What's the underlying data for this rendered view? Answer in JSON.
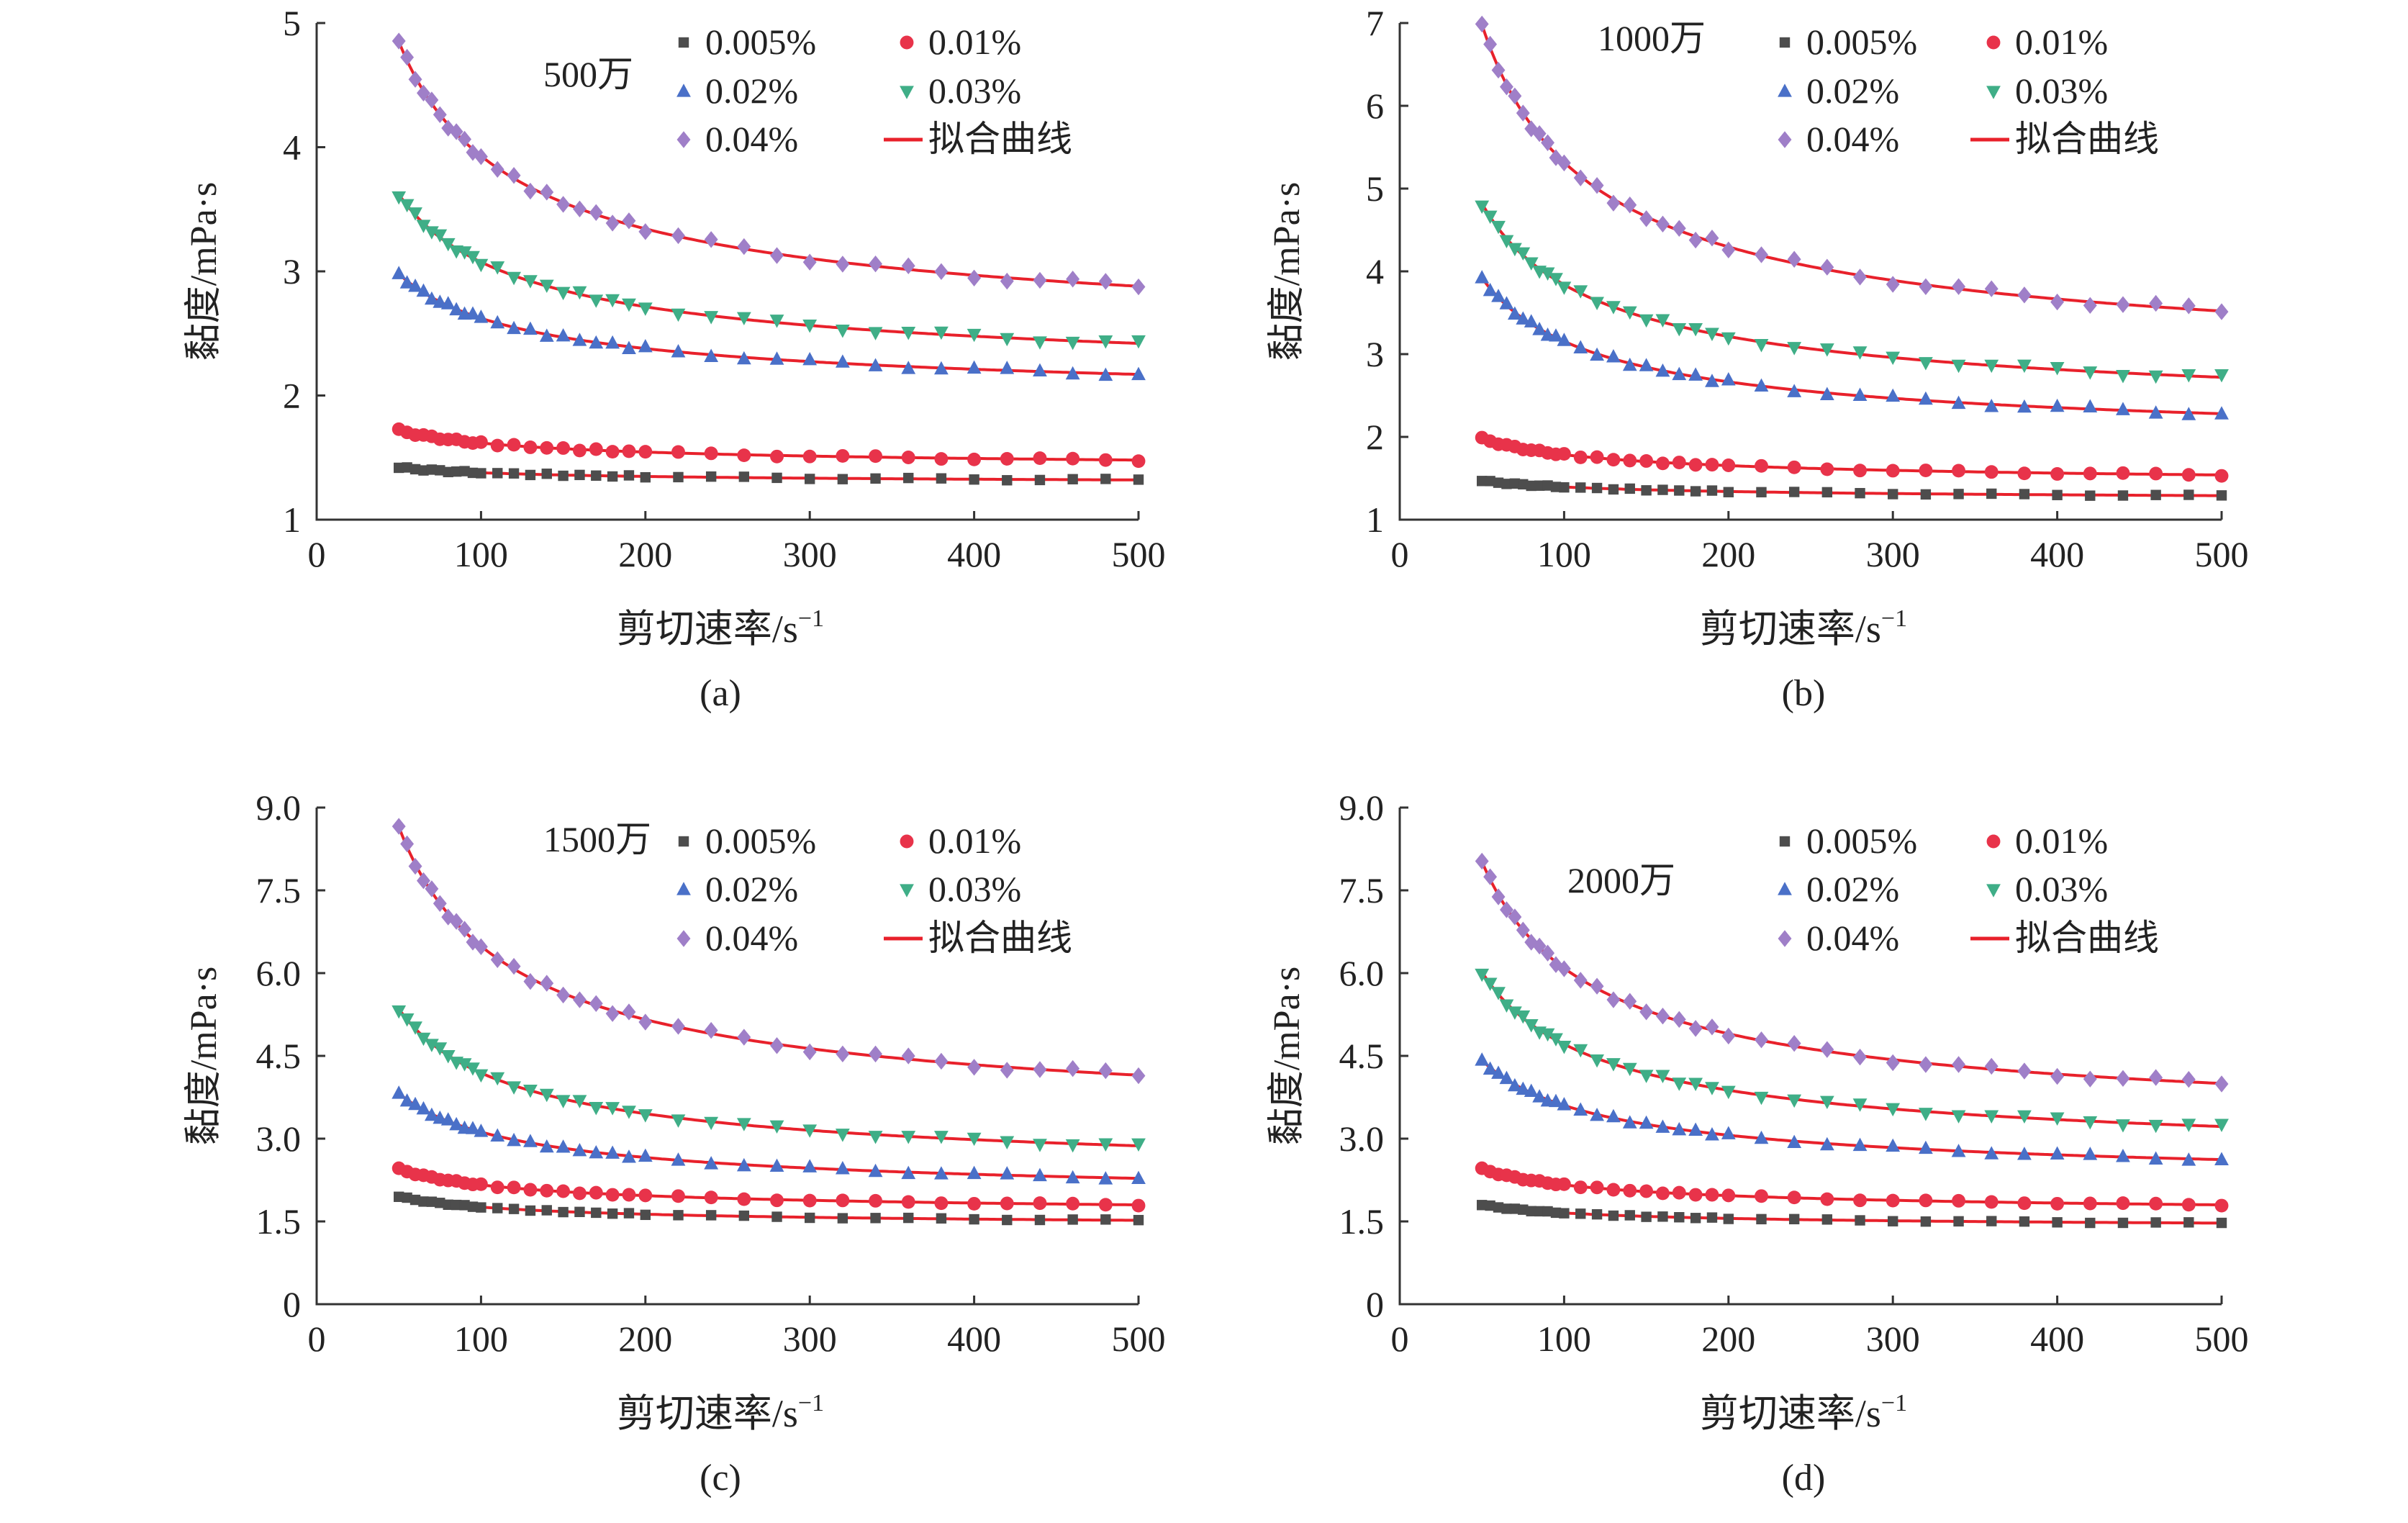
{
  "figure": {
    "xlabel_text": "剪切速率/s",
    "xlabel_sup": "−1",
    "ylabel": "黏度/mPa·s",
    "colors": {
      "series": [
        "#4d4d4d",
        "#e8334a",
        "#4a70c8",
        "#3fae87",
        "#9f7fc8"
      ],
      "fit_line": "#e8212b",
      "axis": "#333333"
    }
  },
  "chart_data": [
    {
      "type": "scatter",
      "panel_label": "(a)",
      "annotation": "500万",
      "xlim": [
        0,
        500
      ],
      "ylim": [
        1,
        5
      ],
      "x_ticks": [
        "0",
        "100",
        "200",
        "300",
        "400",
        "500"
      ],
      "y_ticks": [
        "1",
        "2",
        "3",
        "4",
        "5"
      ],
      "series": [
        {
          "name": "0.005%",
          "marker": "square",
          "start": 1.42,
          "end": 1.32,
          "decay": 0.45
        },
        {
          "name": "0.01%",
          "marker": "circle",
          "start": 1.72,
          "end": 1.48,
          "decay": 0.5
        },
        {
          "name": "0.02%",
          "marker": "triangle-up",
          "start": 2.98,
          "end": 2.17,
          "decay": 0.55
        },
        {
          "name": "0.03%",
          "marker": "triangle-down",
          "start": 3.62,
          "end": 2.42,
          "decay": 0.6
        },
        {
          "name": "0.04%",
          "marker": "diamond",
          "start": 4.85,
          "end": 2.88,
          "decay": 0.65
        }
      ],
      "legend": [
        "0.005%",
        "0.01%",
        "0.02%",
        "0.03%",
        "0.04%",
        "拟合曲线"
      ]
    },
    {
      "type": "scatter",
      "panel_label": "(b)",
      "annotation": "1000万",
      "xlim": [
        0,
        500
      ],
      "ylim": [
        1,
        7
      ],
      "x_ticks": [
        "0",
        "100",
        "200",
        "300",
        "400",
        "500"
      ],
      "y_ticks": [
        "1",
        "2",
        "3",
        "4",
        "5",
        "6",
        "7"
      ],
      "series": [
        {
          "name": "0.005%",
          "marker": "square",
          "start": 1.47,
          "end": 1.29,
          "decay": 0.45
        },
        {
          "name": "0.01%",
          "marker": "circle",
          "start": 1.98,
          "end": 1.54,
          "decay": 0.55
        },
        {
          "name": "0.02%",
          "marker": "triangle-up",
          "start": 3.92,
          "end": 2.28,
          "decay": 0.65
        },
        {
          "name": "0.03%",
          "marker": "triangle-down",
          "start": 4.82,
          "end": 2.72,
          "decay": 0.65
        },
        {
          "name": "0.04%",
          "marker": "diamond",
          "start": 6.98,
          "end": 3.52,
          "decay": 0.7
        }
      ],
      "legend": [
        "0.005%",
        "0.01%",
        "0.02%",
        "0.03%",
        "0.04%",
        "拟合曲线"
      ]
    },
    {
      "type": "scatter",
      "panel_label": "(c)",
      "annotation": "1500万",
      "xlim": [
        0,
        500
      ],
      "ylim": [
        0,
        9
      ],
      "x_ticks": [
        "0",
        "100",
        "200",
        "300",
        "400",
        "500"
      ],
      "y_ticks": [
        "0",
        "1.5",
        "3.0",
        "4.5",
        "6.0",
        "7.5",
        "9.0"
      ],
      "series": [
        {
          "name": "0.005%",
          "marker": "square",
          "start": 1.95,
          "end": 1.52,
          "decay": 0.55
        },
        {
          "name": "0.01%",
          "marker": "circle",
          "start": 2.45,
          "end": 1.8,
          "decay": 0.55
        },
        {
          "name": "0.02%",
          "marker": "triangle-up",
          "start": 3.82,
          "end": 2.28,
          "decay": 0.6
        },
        {
          "name": "0.03%",
          "marker": "triangle-down",
          "start": 5.35,
          "end": 2.87,
          "decay": 0.65
        },
        {
          "name": "0.04%",
          "marker": "diamond",
          "start": 8.65,
          "end": 4.15,
          "decay": 0.7
        }
      ],
      "legend": [
        "0.005%",
        "0.01%",
        "0.02%",
        "0.03%",
        "0.04%",
        "拟合曲线"
      ]
    },
    {
      "type": "scatter",
      "panel_label": "(d)",
      "annotation": "2000万",
      "xlim": [
        0,
        500
      ],
      "ylim": [
        0,
        9
      ],
      "x_ticks": [
        "0",
        "100",
        "200",
        "300",
        "400",
        "500"
      ],
      "y_ticks": [
        "0",
        "1.5",
        "3.0",
        "4.5",
        "6.0",
        "7.5",
        "9.0"
      ],
      "series": [
        {
          "name": "0.005%",
          "marker": "square",
          "start": 1.8,
          "end": 1.47,
          "decay": 0.55
        },
        {
          "name": "0.01%",
          "marker": "circle",
          "start": 2.45,
          "end": 1.8,
          "decay": 0.55
        },
        {
          "name": "0.02%",
          "marker": "triangle-up",
          "start": 4.42,
          "end": 2.62,
          "decay": 0.6
        },
        {
          "name": "0.03%",
          "marker": "triangle-down",
          "start": 6.02,
          "end": 3.22,
          "decay": 0.65
        },
        {
          "name": "0.04%",
          "marker": "diamond",
          "start": 8.02,
          "end": 4.0,
          "decay": 0.7
        }
      ],
      "legend": [
        "0.005%",
        "0.01%",
        "0.02%",
        "0.03%",
        "0.04%",
        "拟合曲线"
      ]
    }
  ]
}
